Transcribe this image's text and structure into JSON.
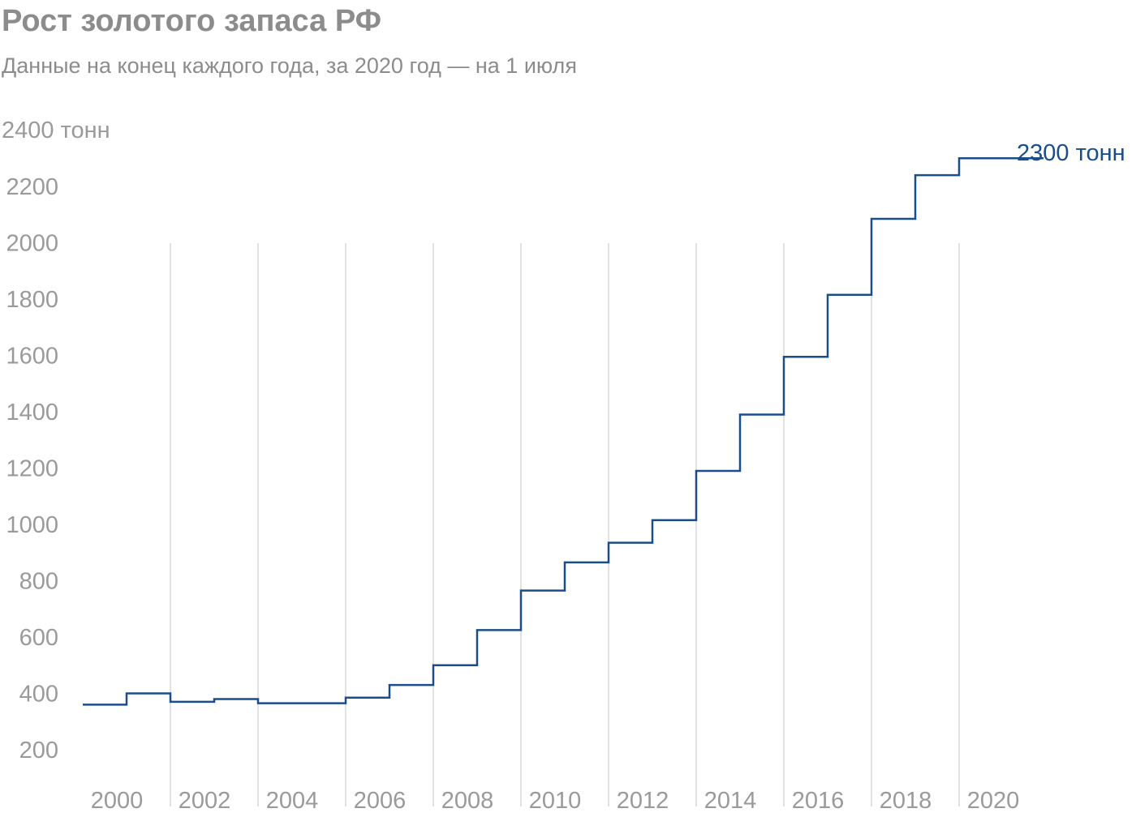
{
  "chart_data": {
    "type": "line",
    "step": true,
    "title": "Рост золотого запаса РФ",
    "subtitle": "Данные на конец каждого года, за 2020 год — на 1 июля",
    "y_unit_label": "2400 тонн",
    "end_label": "2300 тонн",
    "x": [
      1999,
      2000,
      2001,
      2002,
      2003,
      2004,
      2005,
      2006,
      2007,
      2008,
      2009,
      2010,
      2011,
      2012,
      2013,
      2014,
      2015,
      2016,
      2017,
      2018,
      2019,
      2020
    ],
    "values": [
      360,
      400,
      370,
      380,
      365,
      365,
      385,
      430,
      500,
      625,
      765,
      865,
      935,
      1015,
      1190,
      1390,
      1595,
      1815,
      2085,
      2240,
      2300,
      2300
    ],
    "x_ticks": [
      "2000",
      "2002",
      "2004",
      "2006",
      "2008",
      "2010",
      "2012",
      "2014",
      "2016",
      "2018",
      "2020"
    ],
    "y_ticks": [
      "200",
      "400",
      "600",
      "800",
      "1000",
      "1200",
      "1400",
      "1600",
      "1800",
      "2000",
      "2200"
    ],
    "ylim": [
      200,
      2400
    ],
    "xlim": [
      1999,
      2021
    ],
    "line_color": "#1a4e8a",
    "grid_color": "#e2e2e2",
    "text_color": "#8c8c8c",
    "grid": "vertical-every-2-years",
    "legend": "none"
  }
}
